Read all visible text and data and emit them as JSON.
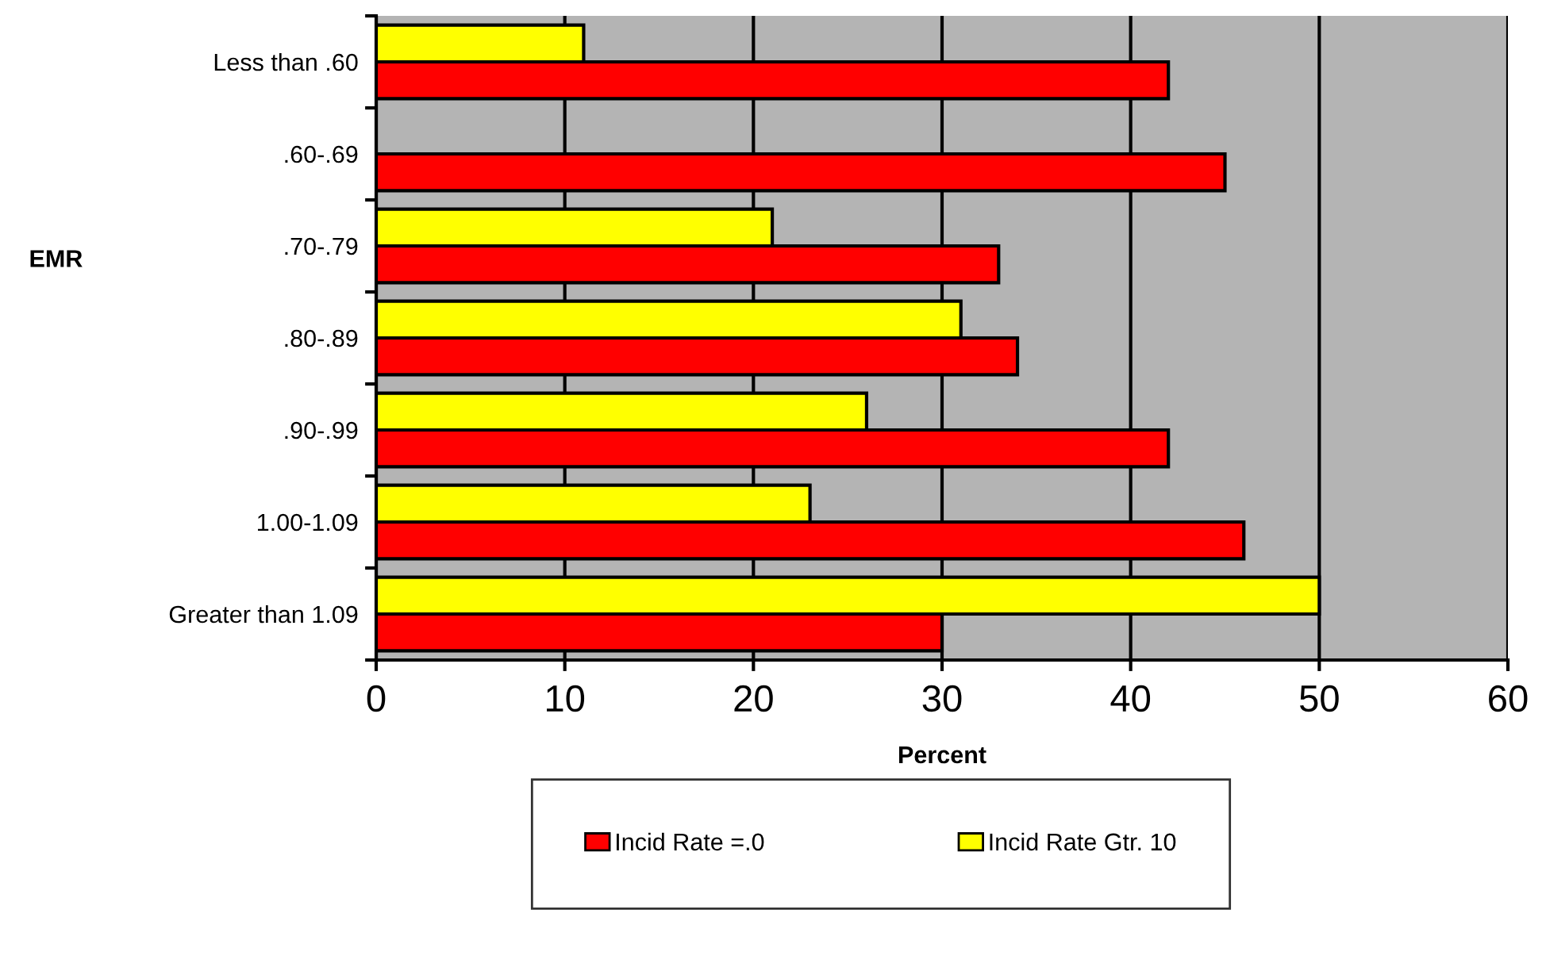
{
  "chart_data": {
    "type": "bar",
    "orientation": "horizontal",
    "categories": [
      "Less than .60",
      ".60-.69",
      ".70-.79",
      ".80-.89",
      ".90-.99",
      "1.00-1.09",
      "Greater than 1.09"
    ],
    "series": [
      {
        "name": "Incid Rate =.0",
        "color": "#ff0000",
        "values": [
          42,
          45,
          33,
          34,
          42,
          46,
          30
        ]
      },
      {
        "name": "Incid Rate Gtr. 10",
        "color": "#ffff00",
        "values": [
          11,
          null,
          21,
          31,
          26,
          23,
          50
        ]
      }
    ],
    "xlim": [
      0,
      60
    ],
    "xticks": [
      0,
      10,
      20,
      30,
      40,
      50,
      60
    ],
    "xlabel": "Percent",
    "ylabel": "EMR",
    "grid": "x",
    "legend": "bottom"
  }
}
